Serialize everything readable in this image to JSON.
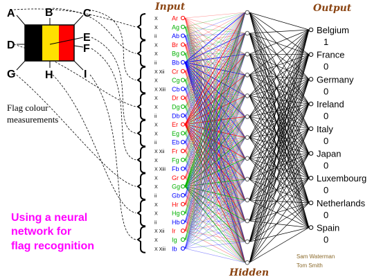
{
  "flag": {
    "corner_labels": {
      "A": "A",
      "B": "B",
      "C": "C",
      "D": "D",
      "E": "E",
      "F": "F",
      "G": "G",
      "H": "H",
      "I": "I"
    },
    "caption_line1": "Flag colour",
    "caption_line2": "measurements",
    "stripe_colors": [
      "#000000",
      "#ffe000",
      "#ff0000"
    ]
  },
  "headings": {
    "input": "Input",
    "output": "Output",
    "hidden": "Hidden"
  },
  "title_lines": [
    "Using a neural",
    "network for",
    "flag recognition"
  ],
  "groups": [
    {
      "letter": "A",
      "marks": [
        "X",
        "X",
        "ii"
      ]
    },
    {
      "letter": "B",
      "marks": [
        "X",
        "X",
        "ii"
      ]
    },
    {
      "letter": "C",
      "marks": [
        "X Xii",
        "X",
        "X Xiii"
      ]
    },
    {
      "letter": "D",
      "marks": [
        "X",
        "X",
        "ii"
      ]
    },
    {
      "letter": "E",
      "marks": [
        "X",
        "X",
        "ii"
      ]
    },
    {
      "letter": "F",
      "marks": [
        "X Xii",
        "X",
        "X Xiii"
      ]
    },
    {
      "letter": "G",
      "marks": [
        "X",
        "X",
        "ii"
      ]
    },
    {
      "letter": "H",
      "marks": [
        "X",
        "X",
        "ii"
      ]
    },
    {
      "letter": "I",
      "marks": [
        "X Xii",
        "X",
        "X Xiii"
      ]
    }
  ],
  "channels": [
    {
      "suffix": "r",
      "color": "#ff0000"
    },
    {
      "suffix": "g",
      "color": "#00b000"
    },
    {
      "suffix": "b",
      "color": "#0000ff"
    }
  ],
  "inputs": [
    "Ar",
    "Ag",
    "Ab",
    "Br",
    "Bg",
    "Bb",
    "Cr",
    "Cg",
    "Cb",
    "Dr",
    "Dg",
    "Db",
    "Er",
    "Eg",
    "Eb",
    "Fr",
    "Fg",
    "Fb",
    "Gr",
    "Gg",
    "Gb",
    "Hr",
    "Hg",
    "Hb",
    "Ir",
    "Ig",
    "Ib"
  ],
  "outputs": [
    {
      "country": "Belgium",
      "value": "1"
    },
    {
      "country": "France",
      "value": "0"
    },
    {
      "country": "Germany",
      "value": "0"
    },
    {
      "country": "Ireland",
      "value": "0"
    },
    {
      "country": "Italy",
      "value": "0"
    },
    {
      "country": "Japan",
      "value": "0"
    },
    {
      "country": "Luxembourg",
      "value": "0"
    },
    {
      "country": "Netherlands",
      "value": "0"
    },
    {
      "country": "Spain",
      "value": "0"
    }
  ],
  "hidden_count": 13,
  "active_input_colors": {
    "Bb": "#0000ff",
    "Er": "#ff0000",
    "Gg": "#00b000"
  },
  "credit_lines": [
    "Sam Waterman",
    "Tom Smith"
  ],
  "colors": {
    "title": "#ff00ff",
    "heading": "#8b4513",
    "credit": "#8b6a2b",
    "wire_output": "#000000",
    "flag_border": "#000000"
  }
}
